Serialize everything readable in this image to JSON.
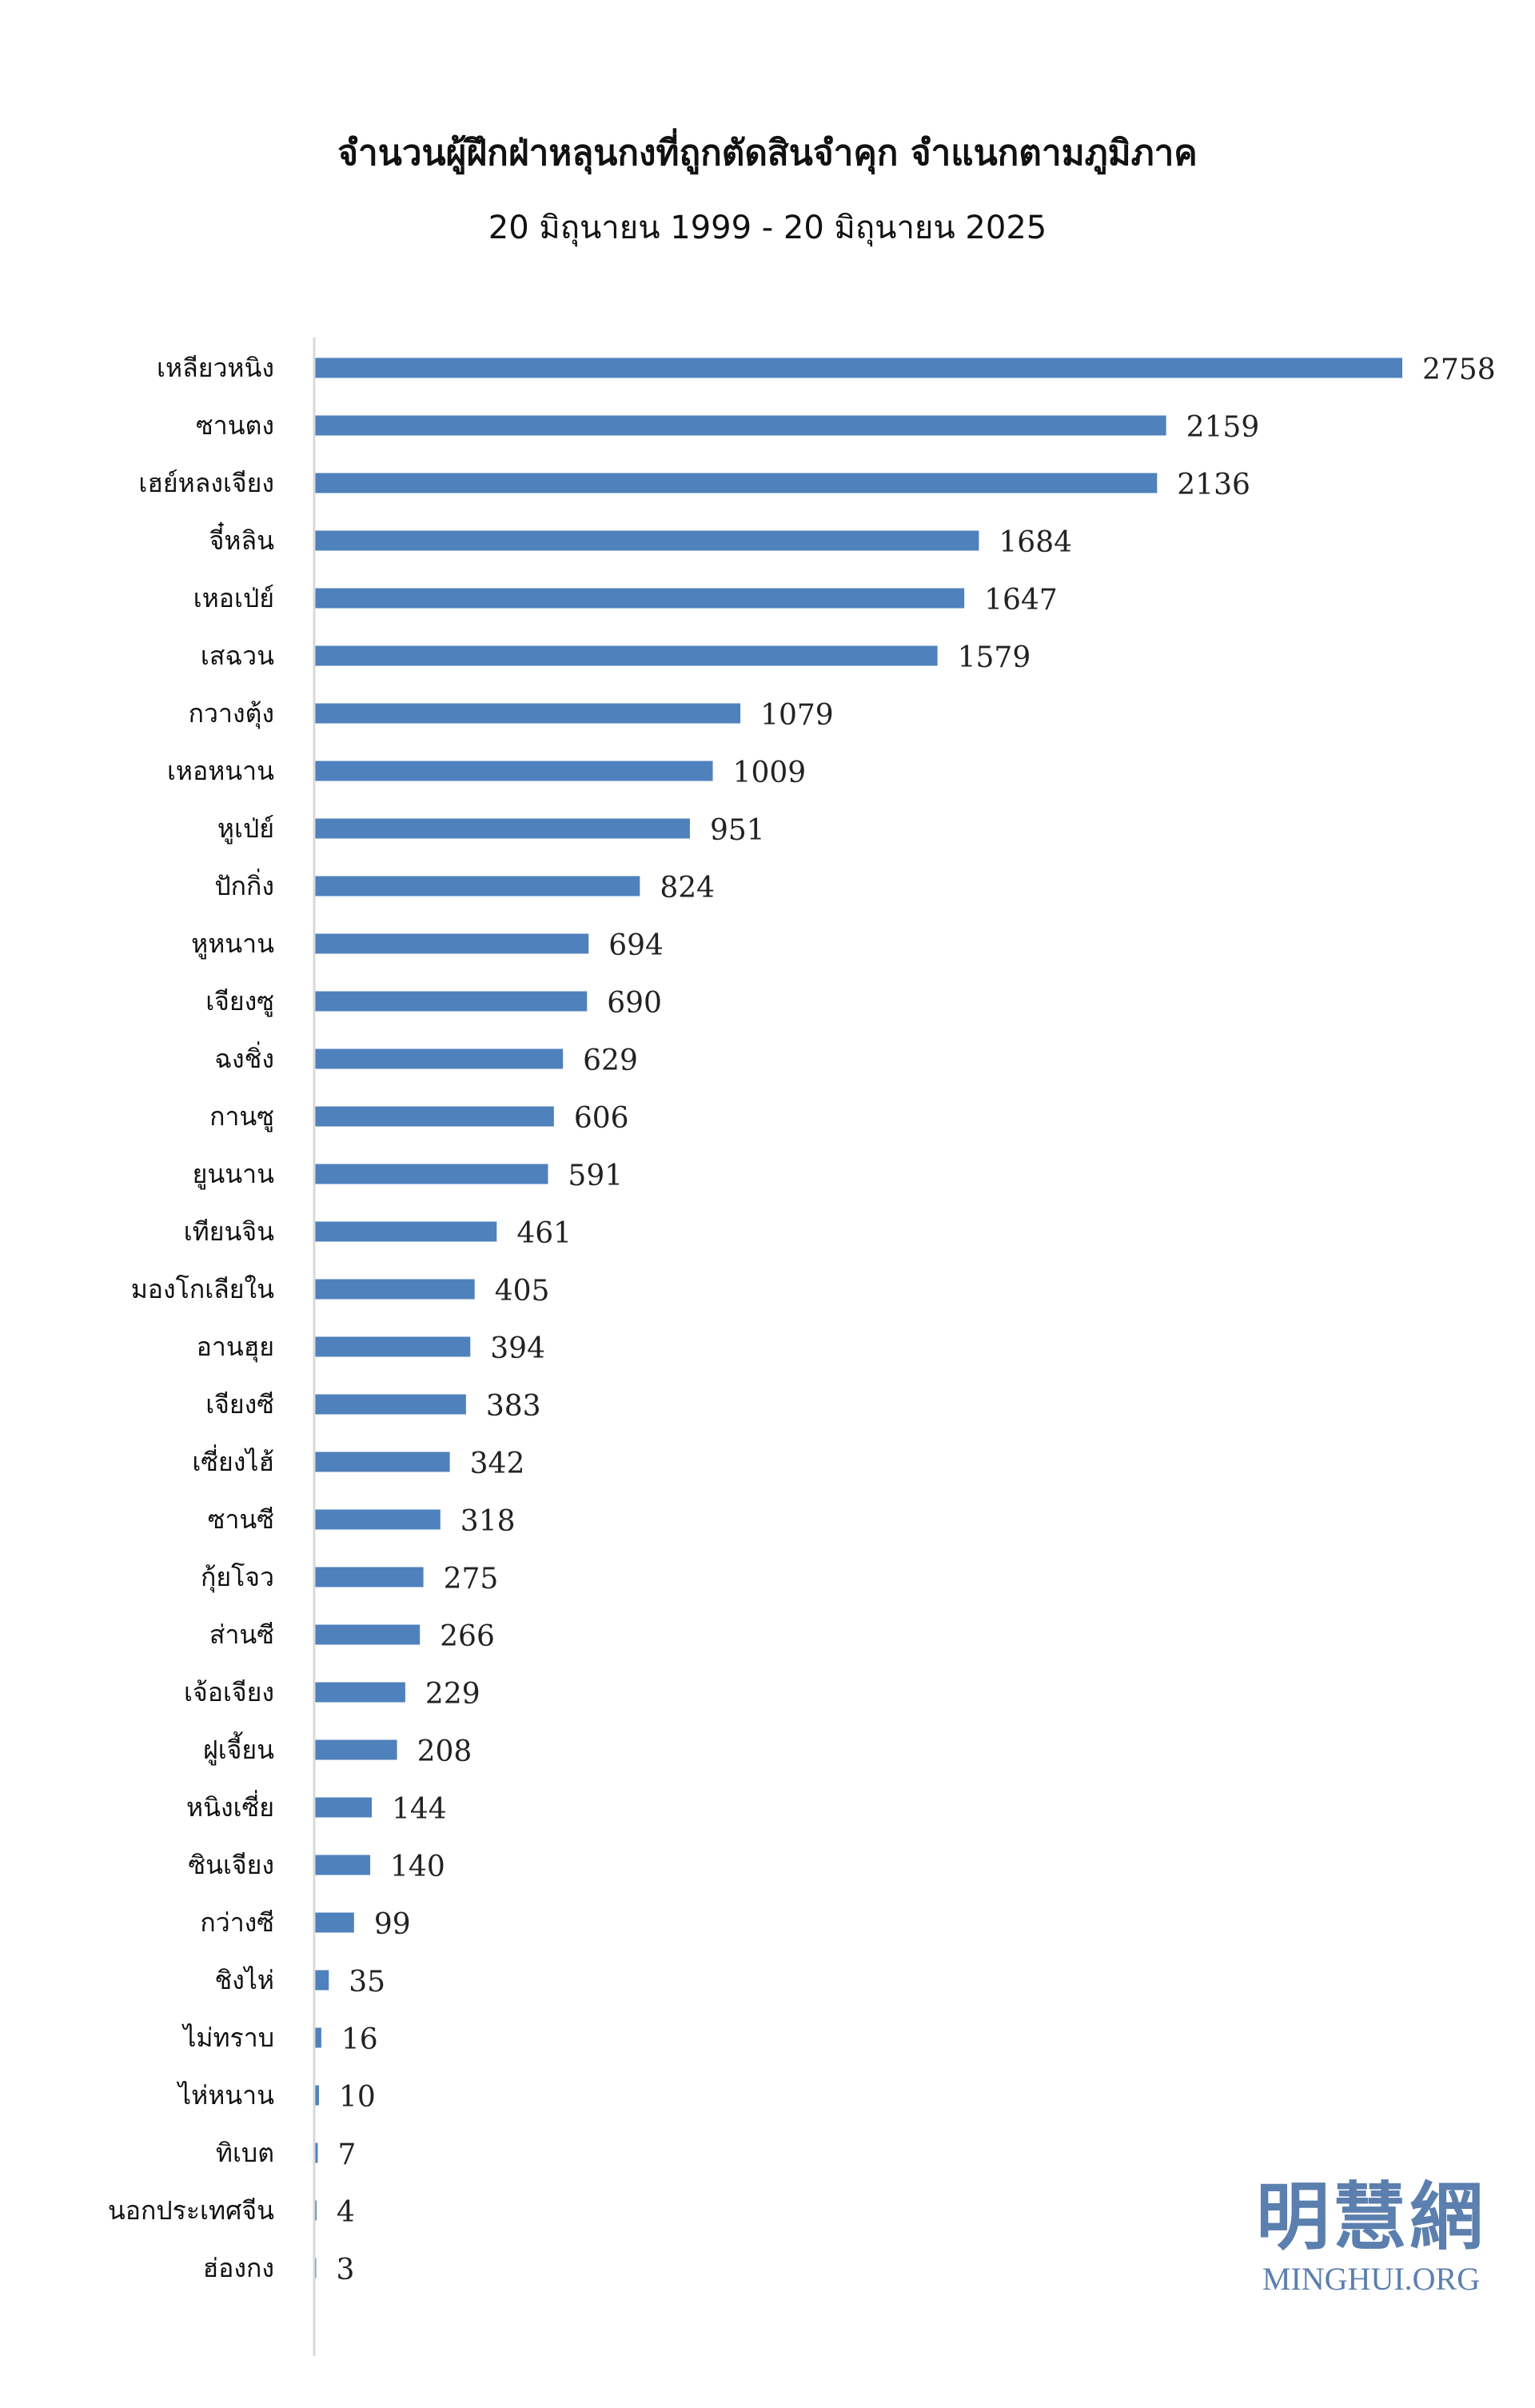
{
  "chart_data": {
    "type": "bar",
    "orientation": "horizontal",
    "title": "จำนวนผู้ฝึกฝ่าหลุนกงที่ถูกตัดสินจำคุก จำแนกตามภูมิภาค",
    "subtitle": "20 มิถุนายน 1999 - 20 มิถุนายน 2025",
    "categories": [
      "เหลียวหนิง",
      "ซานตง",
      "เฮย์หลงเจียง",
      "จี๋หลิน",
      "เหอเป่ย์",
      "เสฉวน",
      "กวางตุ้ง",
      "เหอหนาน",
      "หูเป่ย์",
      "ปักกิ่ง",
      "หูหนาน",
      "เจียงซู",
      "ฉงชิ่ง",
      "กานซู",
      "ยูนนาน",
      "เทียนจิน",
      "มองโกเลียใน",
      "อานฮุย",
      "เจียงซี",
      "เซี่ยงไฮ้",
      "ซานซี",
      "กุ้ยโจว",
      "ส่านซี",
      "เจ้อเจียง",
      "ฝูเจี้ยน",
      "หนิงเซี่ย",
      "ซินเจียง",
      "กว่างซี",
      "ชิงไห่",
      "ไม่ทราบ",
      "ไห่หนาน",
      "ทิเบต",
      "นอกประเทศจีน",
      "ฮ่องกง"
    ],
    "values": [
      2758,
      2159,
      2136,
      1684,
      1647,
      1579,
      1079,
      1009,
      951,
      824,
      694,
      690,
      629,
      606,
      591,
      461,
      405,
      394,
      383,
      342,
      318,
      275,
      266,
      229,
      208,
      144,
      140,
      99,
      35,
      16,
      10,
      7,
      4,
      3
    ],
    "xlim": [
      0,
      2758
    ],
    "grid": false,
    "legend": "none",
    "data_labels": true,
    "bar_color": "#4f81bd",
    "axis_color": "#d9d9d9"
  },
  "watermark": {
    "cjk": "明慧網",
    "latin": "MINGHUI.ORG",
    "color": "#5b7fae"
  }
}
